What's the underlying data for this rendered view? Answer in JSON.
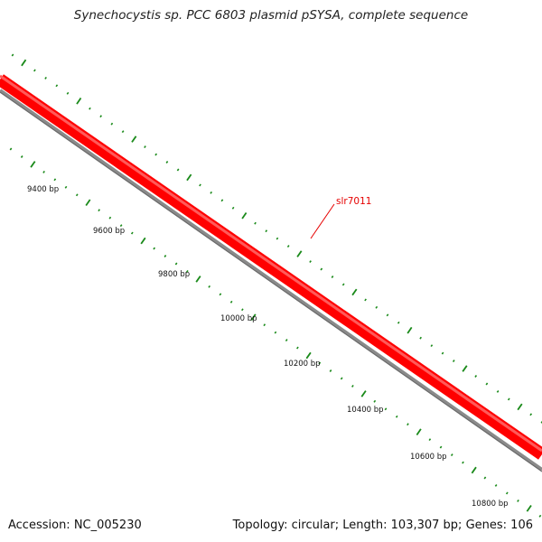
{
  "title": "Synechocystis sp. PCC 6803 plasmid pSYSA, complete sequence",
  "footer": {
    "accession": "Accession: NC_005230",
    "topology": "Topology: circular;",
    "length": "Length: 103,307 bp;",
    "genes": "Genes: 106"
  },
  "gene_label": "slr7011",
  "ticks": [
    "9400 bp",
    "9600 bp",
    "9800 bp",
    "10000 bp",
    "10200 bp",
    "10400 bp",
    "10600 bp",
    "10800 bp"
  ],
  "colors": {
    "backbone_red": "#ff0000",
    "backbone_red_light": "#ff5555",
    "backbone_gray": "#8a8a8a",
    "tick_green": "#1a8a1a",
    "label_red": "#e60000"
  }
}
